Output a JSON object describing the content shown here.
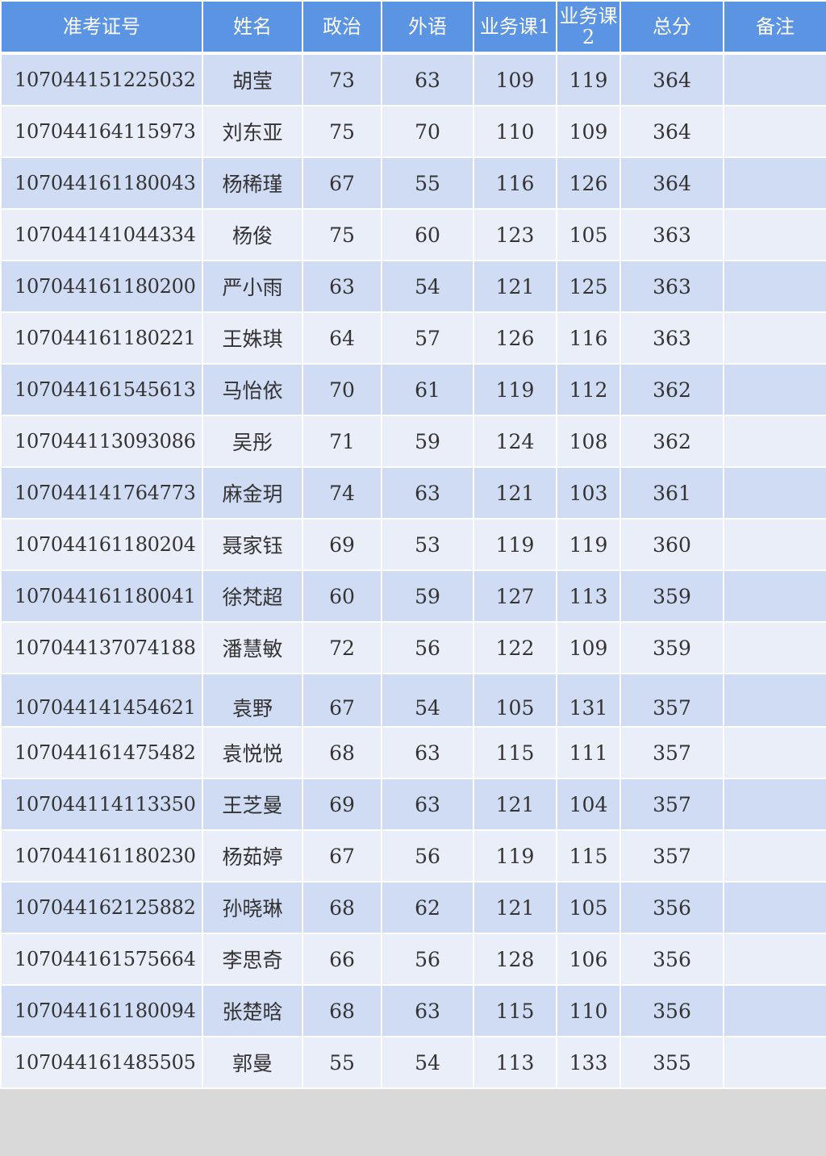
{
  "columns": [
    "准考证号",
    "姓名",
    "政治",
    "外语",
    "业务课1",
    "业务课2",
    "总分",
    "备注"
  ],
  "rows": [
    {
      "id": "107044151225032",
      "name": "胡莹",
      "politics": "73",
      "language": "63",
      "course1": "109",
      "course2": "119",
      "total": "364",
      "note": ""
    },
    {
      "id": "107044164115973",
      "name": "刘东亚",
      "politics": "75",
      "language": "70",
      "course1": "110",
      "course2": "109",
      "total": "364",
      "note": ""
    },
    {
      "id": "107044161180043",
      "name": "杨稀瑾",
      "politics": "67",
      "language": "55",
      "course1": "116",
      "course2": "126",
      "total": "364",
      "note": ""
    },
    {
      "id": "107044141044334",
      "name": "杨俊",
      "politics": "75",
      "language": "60",
      "course1": "123",
      "course2": "105",
      "total": "363",
      "note": ""
    },
    {
      "id": "107044161180200",
      "name": "严小雨",
      "politics": "63",
      "language": "54",
      "course1": "121",
      "course2": "125",
      "total": "363",
      "note": ""
    },
    {
      "id": "107044161180221",
      "name": "王姝琪",
      "politics": "64",
      "language": "57",
      "course1": "126",
      "course2": "116",
      "total": "363",
      "note": ""
    },
    {
      "id": "107044161545613",
      "name": "马怡依",
      "politics": "70",
      "language": "61",
      "course1": "119",
      "course2": "112",
      "total": "362",
      "note": ""
    },
    {
      "id": "107044113093086",
      "name": "吴彤",
      "politics": "71",
      "language": "59",
      "course1": "124",
      "course2": "108",
      "total": "362",
      "note": ""
    },
    {
      "id": "107044141764773",
      "name": "麻金玥",
      "politics": "74",
      "language": "63",
      "course1": "121",
      "course2": "103",
      "total": "361",
      "note": ""
    },
    {
      "id": "107044161180204",
      "name": "聂家钰",
      "politics": "69",
      "language": "53",
      "course1": "119",
      "course2": "119",
      "total": "360",
      "note": ""
    },
    {
      "id": "107044161180041",
      "name": "徐梵超",
      "politics": "60",
      "language": "59",
      "course1": "127",
      "course2": "113",
      "total": "359",
      "note": ""
    },
    {
      "id": "107044137074188",
      "name": "潘慧敏",
      "politics": "72",
      "language": "56",
      "course1": "122",
      "course2": "109",
      "total": "359",
      "note": ""
    },
    {
      "id": "107044141454621",
      "name": "袁野",
      "politics": "67",
      "language": "54",
      "course1": "105",
      "course2": "131",
      "total": "357",
      "note": ""
    },
    {
      "id": "107044161475482",
      "name": "袁悦悦",
      "politics": "68",
      "language": "63",
      "course1": "115",
      "course2": "111",
      "total": "357",
      "note": ""
    },
    {
      "id": "107044114113350",
      "name": "王芝曼",
      "politics": "69",
      "language": "63",
      "course1": "121",
      "course2": "104",
      "total": "357",
      "note": ""
    },
    {
      "id": "107044161180230",
      "name": "杨茹婷",
      "politics": "67",
      "language": "56",
      "course1": "119",
      "course2": "115",
      "total": "357",
      "note": ""
    },
    {
      "id": "107044162125882",
      "name": "孙晓琳",
      "politics": "68",
      "language": "62",
      "course1": "121",
      "course2": "105",
      "total": "356",
      "note": ""
    },
    {
      "id": "107044161575664",
      "name": "李思奇",
      "politics": "66",
      "language": "56",
      "course1": "128",
      "course2": "106",
      "total": "356",
      "note": ""
    },
    {
      "id": "107044161180094",
      "name": "张楚晗",
      "politics": "68",
      "language": "63",
      "course1": "115",
      "course2": "110",
      "total": "356",
      "note": ""
    },
    {
      "id": "107044161485505",
      "name": "郭曼",
      "politics": "55",
      "language": "54",
      "course1": "113",
      "course2": "133",
      "total": "355",
      "note": ""
    }
  ],
  "colors": {
    "header_bg": "#5b94e2",
    "row_odd": "#cfdcf3",
    "row_even": "#e9eef9"
  }
}
